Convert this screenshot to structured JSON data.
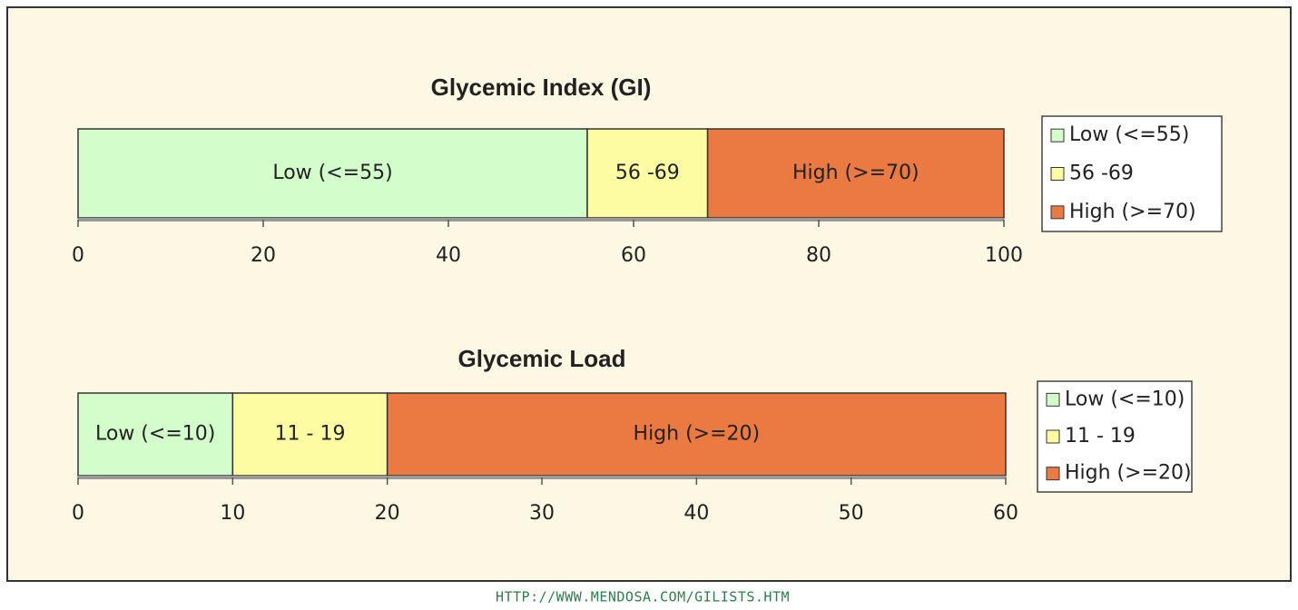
{
  "chart_data": [
    {
      "type": "bar",
      "orientation": "horizontal",
      "stacked": true,
      "title": "Glycemic Index (GI)",
      "series": [
        {
          "name": "Low (<=55)",
          "color": "#d4fdcc",
          "values": [
            55
          ]
        },
        {
          "name": "56 -69",
          "color": "#fdfca2",
          "values": [
            13
          ]
        },
        {
          "name": "High (>=70)",
          "color": "#eb7a42",
          "values": [
            32
          ]
        }
      ],
      "xlim": [
        0,
        100
      ],
      "xticks": [
        0,
        20,
        40,
        60,
        80,
        100
      ],
      "legend": "right"
    },
    {
      "type": "bar",
      "orientation": "horizontal",
      "stacked": true,
      "title": "Glycemic Load",
      "series": [
        {
          "name": "Low (<=10)",
          "color": "#d4fdcc",
          "values": [
            10
          ]
        },
        {
          "name": "11 - 19",
          "color": "#fdfca2",
          "values": [
            10
          ]
        },
        {
          "name": "High (>=20)",
          "color": "#eb7a42",
          "values": [
            40
          ]
        }
      ],
      "xlim": [
        0,
        60
      ],
      "xticks": [
        0,
        10,
        20,
        30,
        40,
        50,
        60
      ],
      "legend": "right"
    }
  ],
  "source": "HTTP://WWW.MENDOSA.COM/GILISTS.HTM"
}
